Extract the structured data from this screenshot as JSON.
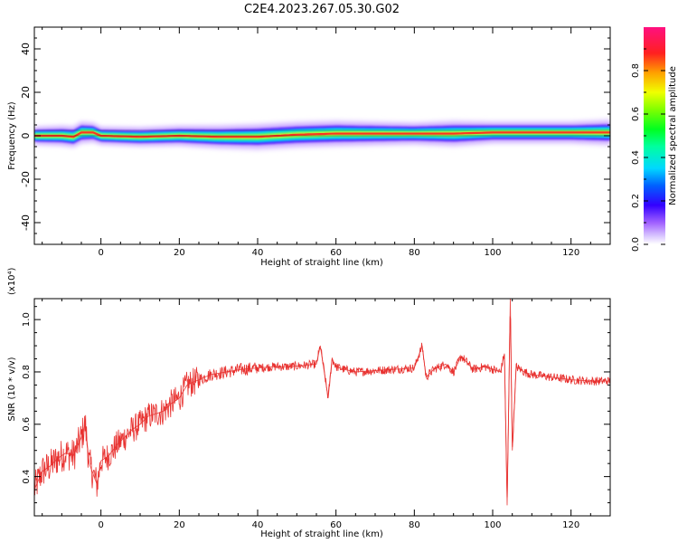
{
  "title": "C2E4.2023.267.05.30.G02",
  "chart_data": [
    {
      "type": "heatmap",
      "xlabel": "Height of straight line (km)",
      "ylabel": "Frequency (Hz)",
      "xlim": [
        -17,
        130
      ],
      "ylim": [
        -50,
        50
      ],
      "x_ticks": [
        "0",
        "20",
        "40",
        "60",
        "80",
        "100",
        "120"
      ],
      "y_ticks": [
        "40",
        "20",
        "0",
        "-20",
        "-40"
      ],
      "colorbar": {
        "label": "Normalized spectral amplitude",
        "range": [
          0,
          1
        ],
        "ticks": [
          "0.0",
          "0.2",
          "0.4",
          "0.6",
          "0.8"
        ]
      },
      "ridge_frequency": [
        [
          -17,
          0
        ],
        [
          -10,
          0
        ],
        [
          -7,
          -0.5
        ],
        [
          -5,
          1.5
        ],
        [
          -2,
          1.5
        ],
        [
          0,
          0
        ],
        [
          10,
          -0.5
        ],
        [
          20,
          0
        ],
        [
          30,
          -0.5
        ],
        [
          40,
          -0.5
        ],
        [
          50,
          0.5
        ],
        [
          60,
          1
        ],
        [
          70,
          1
        ],
        [
          80,
          1
        ],
        [
          90,
          1
        ],
        [
          100,
          1.5
        ],
        [
          110,
          1.5
        ],
        [
          120,
          1.5
        ],
        [
          130,
          1.5
        ]
      ],
      "band_halfwidth_hz": [
        [
          -17,
          2.5
        ],
        [
          -5,
          3
        ],
        [
          0,
          2.5
        ],
        [
          20,
          2.8
        ],
        [
          40,
          3.5
        ],
        [
          60,
          3.5
        ],
        [
          80,
          3
        ],
        [
          90,
          3.5
        ],
        [
          100,
          3
        ],
        [
          120,
          3
        ],
        [
          130,
          3.5
        ]
      ]
    },
    {
      "type": "line",
      "xlabel": "Height of straight line (km)",
      "ylabel": "SNR (10 * v/v)",
      "y_multiplier": "(x10⁴)",
      "xlim": [
        -17,
        130
      ],
      "ylim": [
        2500,
        10800
      ],
      "x_ticks": [
        "0",
        "20",
        "40",
        "60",
        "80",
        "100",
        "120"
      ],
      "y_ticks": [
        "0.4",
        "0.6",
        "0.8",
        "1.0"
      ],
      "color": "#e8312f",
      "series": [
        {
          "x": [
            -17,
            -15,
            -13,
            -11,
            -9,
            -7,
            -5,
            -4,
            -3,
            -1,
            0,
            2,
            4,
            6,
            8,
            10,
            12,
            14,
            16,
            18,
            20,
            22,
            25,
            28,
            32,
            36,
            40,
            44,
            48,
            52,
            55,
            56,
            57,
            58,
            59,
            60,
            62,
            65,
            70,
            75,
            80,
            82,
            83,
            85,
            88,
            90,
            92,
            95,
            98,
            100,
            102,
            103,
            103.7,
            104.5,
            105,
            106,
            108,
            110,
            115,
            120,
            125,
            130
          ],
          "y": [
            3500,
            4200,
            4400,
            4700,
            4900,
            4800,
            5500,
            6000,
            4500,
            3700,
            4600,
            4800,
            5200,
            5500,
            5800,
            6000,
            6300,
            6400,
            6500,
            6800,
            7000,
            7500,
            7700,
            7900,
            8000,
            8100,
            8150,
            8200,
            8200,
            8250,
            8300,
            9000,
            8000,
            7000,
            8500,
            8200,
            8100,
            8000,
            8050,
            8100,
            8150,
            9000,
            7800,
            8100,
            8300,
            8000,
            8600,
            8100,
            8200,
            8100,
            8000,
            8700,
            2900,
            10800,
            5000,
            8200,
            8000,
            7900,
            7800,
            7700,
            7650,
            7650
          ]
        }
      ]
    }
  ]
}
